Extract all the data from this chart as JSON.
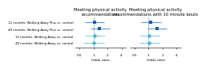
{
  "title1": "Meeting physical activity\nrecommendations",
  "title2": "Meeting physical activity\nrecommendations with 10 minute bouts",
  "xlabel": "Odds ratio",
  "labels": [
    "12 months: Walking Away Plus vs. control",
    "48 months: Walking Away Plus vs. control",
    "12 months: Walking Away vs. control",
    "48 months: Walking Away vs. control"
  ],
  "panel1": {
    "estimates": [
      1.05,
      1.35,
      1.05,
      1.0
    ],
    "ci_low": [
      0.65,
      0.85,
      0.65,
      0.6
    ],
    "ci_high": [
      1.7,
      2.2,
      1.75,
      1.7
    ]
  },
  "panel2": {
    "estimates": [
      1.1,
      1.55,
      1.05,
      1.05
    ],
    "ci_low": [
      0.7,
      0.95,
      0.65,
      0.65
    ],
    "ci_high": [
      1.85,
      2.5,
      1.75,
      1.75
    ]
  },
  "colors": [
    "#1a5fa8",
    "#1a5fa8",
    "#4db8cc",
    "#4db8cc"
  ],
  "xlim_log": [
    0.4,
    5.0
  ],
  "xticks": [
    0.5,
    1.0,
    2.0,
    4.0
  ],
  "xticklabels": [
    "0.5",
    "1",
    "2",
    "4"
  ],
  "vline_x": 1.0,
  "title_fontsize": 3.8,
  "label_fontsize": 2.8,
  "tick_fontsize": 3.0,
  "xlabel_fontsize": 3.2,
  "marker_size_sq": 3.5,
  "marker_size_di": 3.0,
  "lw": 0.5
}
